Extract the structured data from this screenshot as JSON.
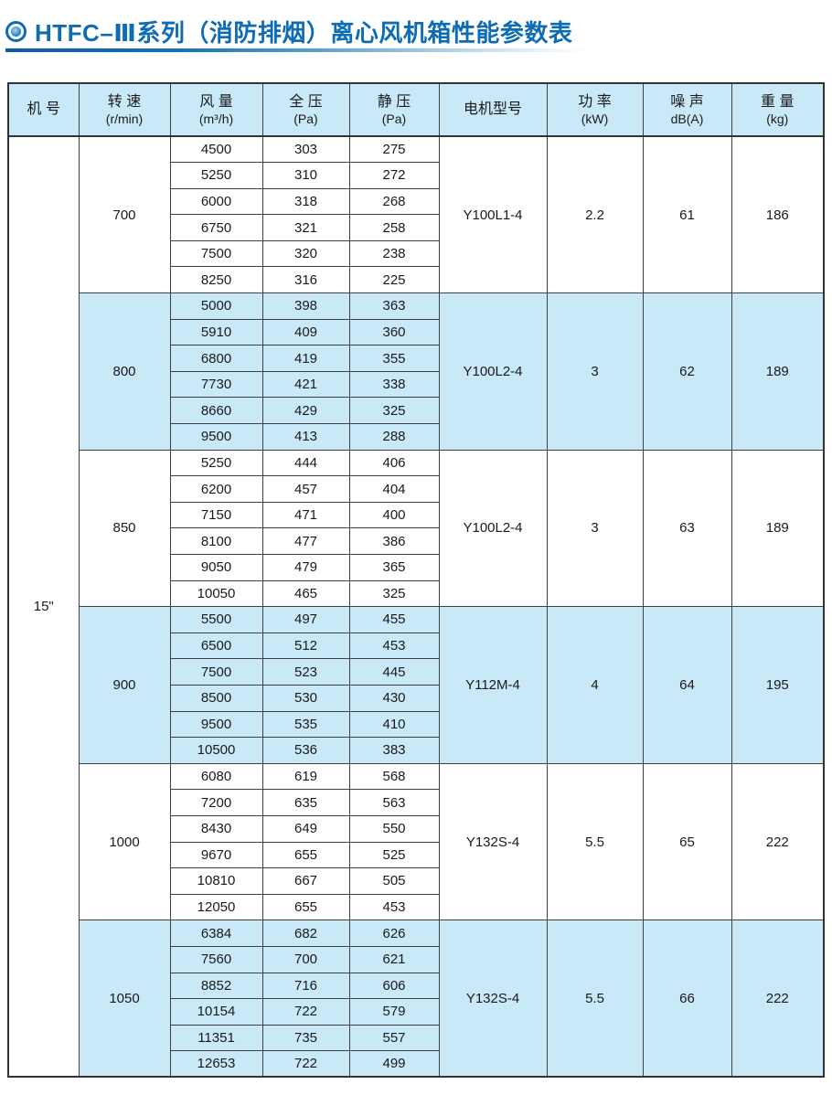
{
  "title": {
    "icon": "bullseye-icon",
    "text": "HTFC–Ⅲ系列（消防排烟）离心风机箱性能参数表"
  },
  "colors": {
    "title_blue": "#0d6cb4",
    "row_shade_bg": "#c9e8f8",
    "header_bg": "#c9e8f8",
    "border": "#3f3f3f"
  },
  "table": {
    "machine_no": "15\"",
    "headers": [
      {
        "label": "机 号",
        "unit": ""
      },
      {
        "label": "转 速",
        "unit": "(r/min)"
      },
      {
        "label": "风 量",
        "unit": "(m³/h)"
      },
      {
        "label": "全 压",
        "unit": "(Pa)"
      },
      {
        "label": "静 压",
        "unit": "(Pa)"
      },
      {
        "label": "电机型号",
        "unit": ""
      },
      {
        "label": "功 率",
        "unit": "(kW)"
      },
      {
        "label": "噪 声",
        "unit": "dB(A)"
      },
      {
        "label": "重 量",
        "unit": "(kg)"
      }
    ],
    "groups": [
      {
        "speed": "700",
        "motor": "Y100L1-4",
        "power": "2.2",
        "noise": "61",
        "weight": "186",
        "rows": [
          [
            "4500",
            "303",
            "275"
          ],
          [
            "5250",
            "310",
            "272"
          ],
          [
            "6000",
            "318",
            "268"
          ],
          [
            "6750",
            "321",
            "258"
          ],
          [
            "7500",
            "320",
            "238"
          ],
          [
            "8250",
            "316",
            "225"
          ]
        ]
      },
      {
        "speed": "800",
        "motor": "Y100L2-4",
        "power": "3",
        "noise": "62",
        "weight": "189",
        "rows": [
          [
            "5000",
            "398",
            "363"
          ],
          [
            "5910",
            "409",
            "360"
          ],
          [
            "6800",
            "419",
            "355"
          ],
          [
            "7730",
            "421",
            "338"
          ],
          [
            "8660",
            "429",
            "325"
          ],
          [
            "9500",
            "413",
            "288"
          ]
        ]
      },
      {
        "speed": "850",
        "motor": "Y100L2-4",
        "power": "3",
        "noise": "63",
        "weight": "189",
        "rows": [
          [
            "5250",
            "444",
            "406"
          ],
          [
            "6200",
            "457",
            "404"
          ],
          [
            "7150",
            "471",
            "400"
          ],
          [
            "8100",
            "477",
            "386"
          ],
          [
            "9050",
            "479",
            "365"
          ],
          [
            "10050",
            "465",
            "325"
          ]
        ]
      },
      {
        "speed": "900",
        "motor": "Y112M-4",
        "power": "4",
        "noise": "64",
        "weight": "195",
        "rows": [
          [
            "5500",
            "497",
            "455"
          ],
          [
            "6500",
            "512",
            "453"
          ],
          [
            "7500",
            "523",
            "445"
          ],
          [
            "8500",
            "530",
            "430"
          ],
          [
            "9500",
            "535",
            "410"
          ],
          [
            "10500",
            "536",
            "383"
          ]
        ]
      },
      {
        "speed": "1000",
        "motor": "Y132S-4",
        "power": "5.5",
        "noise": "65",
        "weight": "222",
        "rows": [
          [
            "6080",
            "619",
            "568"
          ],
          [
            "7200",
            "635",
            "563"
          ],
          [
            "8430",
            "649",
            "550"
          ],
          [
            "9670",
            "655",
            "525"
          ],
          [
            "10810",
            "667",
            "505"
          ],
          [
            "12050",
            "655",
            "453"
          ]
        ]
      },
      {
        "speed": "1050",
        "motor": "Y132S-4",
        "power": "5.5",
        "noise": "66",
        "weight": "222",
        "rows": [
          [
            "6384",
            "682",
            "626"
          ],
          [
            "7560",
            "700",
            "621"
          ],
          [
            "8852",
            "716",
            "606"
          ],
          [
            "10154",
            "722",
            "579"
          ],
          [
            "11351",
            "735",
            "557"
          ],
          [
            "12653",
            "722",
            "499"
          ]
        ]
      }
    ]
  }
}
